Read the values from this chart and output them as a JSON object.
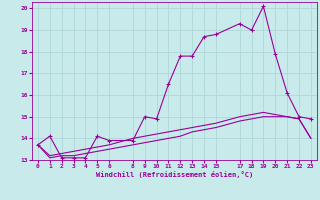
{
  "xlabel": "Windchill (Refroidissement éolien,°C)",
  "background_color": "#c8eaea",
  "grid_color": "#b0d8d8",
  "line_color": "#990099",
  "xlim": [
    -0.5,
    23.5
  ],
  "ylim": [
    13.0,
    20.3
  ],
  "xticks": [
    0,
    1,
    2,
    3,
    4,
    5,
    6,
    8,
    9,
    10,
    11,
    12,
    13,
    14,
    15,
    17,
    18,
    19,
    20,
    21,
    22,
    23
  ],
  "yticks": [
    13,
    14,
    15,
    16,
    17,
    18,
    19,
    20
  ],
  "curve1_x": [
    0,
    1,
    2,
    3,
    4,
    5,
    6,
    8,
    9,
    10,
    11,
    12,
    13,
    14,
    15,
    17,
    18,
    19,
    20,
    21,
    22,
    23
  ],
  "curve1_y": [
    13.7,
    14.1,
    13.1,
    13.1,
    13.1,
    14.1,
    13.9,
    13.9,
    15.0,
    14.9,
    16.5,
    17.8,
    17.8,
    18.7,
    18.8,
    19.3,
    19.0,
    20.1,
    17.9,
    16.1,
    15.0,
    14.9
  ],
  "curve2_x": [
    0,
    1,
    2,
    3,
    4,
    5,
    6,
    8,
    9,
    10,
    11,
    12,
    13,
    14,
    15,
    17,
    18,
    19,
    20,
    21,
    22,
    23
  ],
  "curve2_y": [
    13.7,
    13.1,
    13.2,
    13.2,
    13.3,
    13.4,
    13.5,
    13.7,
    13.8,
    13.9,
    14.0,
    14.1,
    14.3,
    14.4,
    14.5,
    14.8,
    14.9,
    15.0,
    15.0,
    15.0,
    14.9,
    14.0
  ],
  "curve3_x": [
    0,
    1,
    2,
    3,
    4,
    5,
    6,
    8,
    9,
    10,
    11,
    12,
    13,
    14,
    15,
    17,
    18,
    19,
    20,
    21,
    22,
    23
  ],
  "curve3_y": [
    13.7,
    13.2,
    13.3,
    13.4,
    13.5,
    13.6,
    13.7,
    14.0,
    14.1,
    14.2,
    14.3,
    14.4,
    14.5,
    14.6,
    14.7,
    15.0,
    15.1,
    15.2,
    15.1,
    15.0,
    14.9,
    14.0
  ]
}
